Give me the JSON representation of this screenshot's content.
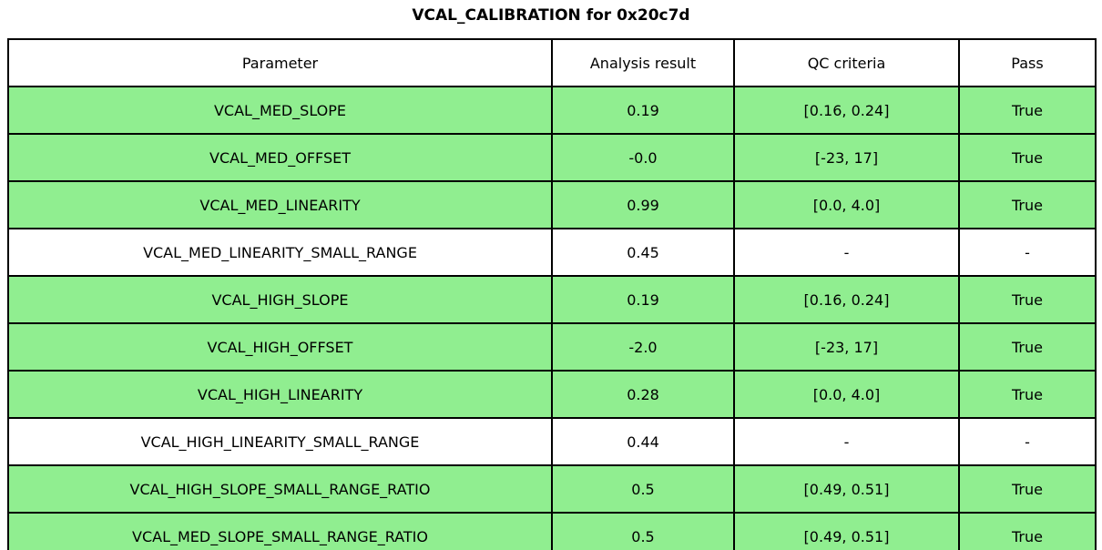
{
  "chart_data": {
    "type": "table",
    "title": "VCAL_CALIBRATION for 0x20c7d",
    "columns": [
      "Parameter",
      "Analysis result",
      "QC criteria",
      "Pass"
    ],
    "rows": [
      {
        "parameter": "VCAL_MED_SLOPE",
        "result": "0.19",
        "criteria": "[0.16, 0.24]",
        "pass": "True",
        "highlight": true
      },
      {
        "parameter": "VCAL_MED_OFFSET",
        "result": "-0.0",
        "criteria": "[-23, 17]",
        "pass": "True",
        "highlight": true
      },
      {
        "parameter": "VCAL_MED_LINEARITY",
        "result": "0.99",
        "criteria": "[0.0, 4.0]",
        "pass": "True",
        "highlight": true
      },
      {
        "parameter": "VCAL_MED_LINEARITY_SMALL_RANGE",
        "result": "0.45",
        "criteria": "-",
        "pass": "-",
        "highlight": false
      },
      {
        "parameter": "VCAL_HIGH_SLOPE",
        "result": "0.19",
        "criteria": "[0.16, 0.24]",
        "pass": "True",
        "highlight": true
      },
      {
        "parameter": "VCAL_HIGH_OFFSET",
        "result": "-2.0",
        "criteria": "[-23, 17]",
        "pass": "True",
        "highlight": true
      },
      {
        "parameter": "VCAL_HIGH_LINEARITY",
        "result": "0.28",
        "criteria": "[0.0, 4.0]",
        "pass": "True",
        "highlight": true
      },
      {
        "parameter": "VCAL_HIGH_LINEARITY_SMALL_RANGE",
        "result": "0.44",
        "criteria": "-",
        "pass": "-",
        "highlight": false
      },
      {
        "parameter": "VCAL_HIGH_SLOPE_SMALL_RANGE_RATIO",
        "result": "0.5",
        "criteria": "[0.49, 0.51]",
        "pass": "True",
        "highlight": true
      },
      {
        "parameter": "VCAL_MED_SLOPE_SMALL_RANGE_RATIO",
        "result": "0.5",
        "criteria": "[0.49, 0.51]",
        "pass": "True",
        "highlight": true
      }
    ],
    "layout": {
      "legend": "none",
      "grid": "table-borders",
      "row_highlight_meaning": "QC passed"
    },
    "colors": {
      "pass_green": "#90EE90",
      "no_criteria_white": "#ffffff",
      "border": "#000000",
      "text": "#000000"
    }
  }
}
